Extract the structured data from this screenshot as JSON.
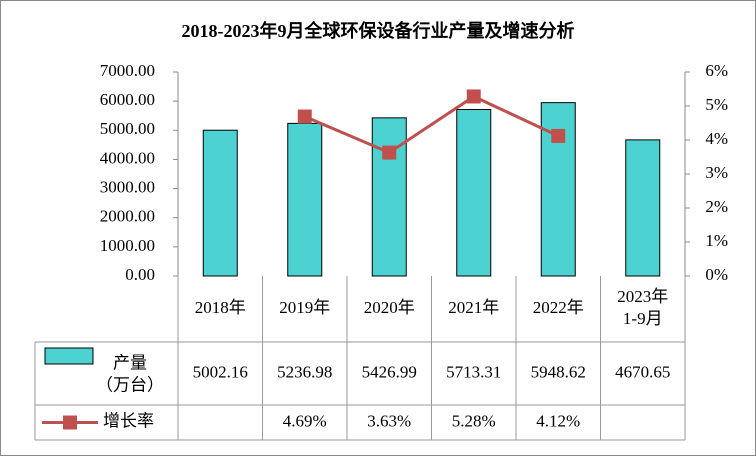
{
  "chart_data": {
    "type": "bar-line-table",
    "title": "2018-2023年9月全球环保设备行业产量及增速分析",
    "categories": [
      "2018年",
      "2019年",
      "2020年",
      "2021年",
      "2022年",
      "2023年\n1-9月"
    ],
    "series": [
      {
        "name": "产量\n（万台）",
        "color": "#4dd2d2",
        "values": [
          5002.16,
          5236.98,
          5426.99,
          5713.31,
          5948.62,
          4670.65
        ]
      },
      {
        "name": "增长率",
        "color": "#c0504d",
        "axis": "y2",
        "values": [
          null,
          4.69,
          3.63,
          5.28,
          4.12,
          null
        ],
        "value_labels": [
          null,
          "4.69%",
          "3.63%",
          "5.28%",
          "4.12%",
          null
        ]
      }
    ],
    "ylim": [
      0,
      7000
    ],
    "yticks": [
      {
        "value": 0,
        "label": "0.00"
      },
      {
        "value": 1000,
        "label": "1000.00"
      },
      {
        "value": 2000,
        "label": "2000.00"
      },
      {
        "value": 3000,
        "label": "3000.00"
      },
      {
        "value": 4000,
        "label": "4000.00"
      },
      {
        "value": 5000,
        "label": "5000.00"
      },
      {
        "value": 6000,
        "label": "6000.00"
      },
      {
        "value": 7000,
        "label": "7000.00"
      }
    ],
    "y2lim": [
      0,
      6
    ],
    "y2ticks": [
      {
        "value": 0,
        "label": "0%"
      },
      {
        "value": 1,
        "label": "1%"
      },
      {
        "value": 2,
        "label": "2%"
      },
      {
        "value": 3,
        "label": "3%"
      },
      {
        "value": 4,
        "label": "4%"
      },
      {
        "value": 5,
        "label": "5%"
      },
      {
        "value": 6,
        "label": "6%"
      }
    ],
    "grid": false
  }
}
